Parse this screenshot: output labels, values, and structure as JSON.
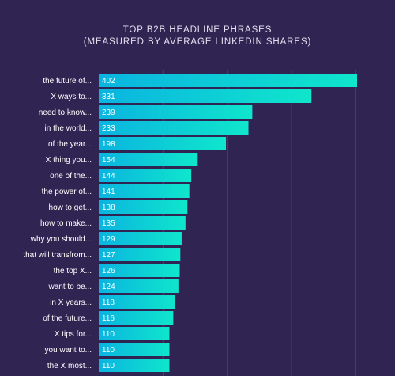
{
  "header": {
    "title": "TOP B2B HEADLINE PHRASES",
    "subtitle": "(MEASURED BY AVERAGE LINKEDIN SHARES)"
  },
  "colors": {
    "background": "#302552",
    "bar_start": "#0ab4e0",
    "bar_end": "#0fe6cc",
    "grid": "#4a3f6e",
    "label": "#ffffff",
    "value": "#ffffff"
  },
  "chart_data": {
    "type": "bar",
    "orientation": "horizontal",
    "title": "TOP B2B HEADLINE PHRASES",
    "subtitle": "(MEASURED BY AVERAGE LINKEDIN SHARES)",
    "categories": [
      "the future of...",
      "X ways to...",
      "need to know...",
      "in the world...",
      "of the year...",
      "X thing you...",
      "one of the...",
      "the power of...",
      "how to get...",
      "how to make...",
      "why you should...",
      "that will transfrom...",
      "the top X...",
      "want to be...",
      "in X years...",
      "of the future...",
      "X tips for...",
      "you want to...",
      "the X most..."
    ],
    "values": [
      402,
      331,
      239,
      233,
      198,
      154,
      144,
      141,
      138,
      135,
      129,
      127,
      126,
      124,
      118,
      116,
      110,
      110,
      110
    ],
    "xlim": [
      0,
      420
    ],
    "grid": true
  }
}
